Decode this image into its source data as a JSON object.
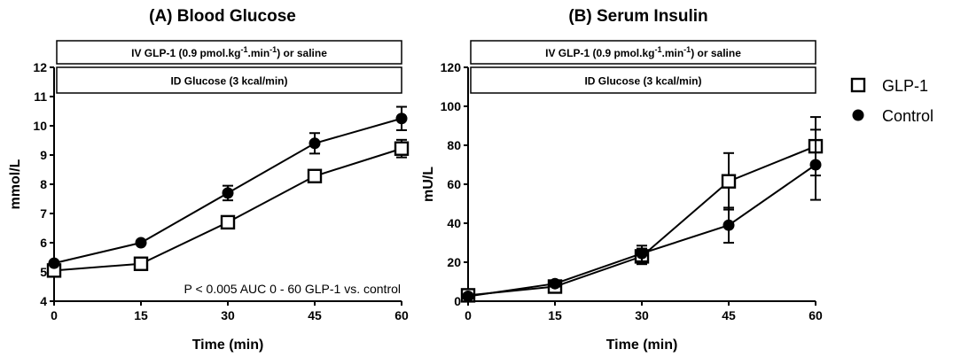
{
  "chart_data": [
    {
      "type": "line",
      "title": "(A) Blood Glucose",
      "xlabel": "Time (min)",
      "ylabel": "mmol/L",
      "x": [
        0,
        15,
        30,
        45,
        60
      ],
      "x_ticks": [
        "0",
        "15",
        "30",
        "45",
        "60"
      ],
      "xlim": [
        0,
        60
      ],
      "ylim": [
        4,
        12
      ],
      "y_ticks": [
        "4",
        "5",
        "6",
        "7",
        "8",
        "9",
        "10",
        "11",
        "12"
      ],
      "grid": false,
      "series": [
        {
          "name": "GLP-1",
          "marker": "open-square",
          "values": [
            5.05,
            5.28,
            6.7,
            8.28,
            9.22
          ],
          "error": [
            0.05,
            0.05,
            0.2,
            0.18,
            0.3
          ]
        },
        {
          "name": "Control",
          "marker": "filled-circle",
          "values": [
            5.3,
            6.0,
            7.7,
            9.4,
            10.25
          ],
          "error": [
            0.05,
            0.05,
            0.25,
            0.35,
            0.4
          ]
        }
      ],
      "banners": [
        {
          "pre": "IV GLP-1 (0.9 pmol.kg",
          "sup1": "-1",
          "mid": ".min",
          "sup2": "-1",
          "post": ") or saline"
        },
        {
          "pre": "ID Glucose (3 kcal/min)"
        }
      ],
      "annotation": "P < 0.005 AUC 0 - 60 GLP-1 vs. control"
    },
    {
      "type": "line",
      "title": "(B) Serum Insulin",
      "xlabel": "Time (min)",
      "ylabel": "mU/L",
      "x": [
        0,
        15,
        30,
        45,
        60
      ],
      "x_ticks": [
        "0",
        "15",
        "30",
        "45",
        "60"
      ],
      "xlim": [
        0,
        60
      ],
      "ylim": [
        0,
        120
      ],
      "y_ticks": [
        "0",
        "20",
        "40",
        "60",
        "80",
        "100",
        "120"
      ],
      "grid": false,
      "series": [
        {
          "name": "GLP-1",
          "marker": "open-square",
          "values": [
            3,
            7.5,
            23,
            61.5,
            79.5
          ],
          "error": [
            1,
            1.5,
            4,
            14.5,
            15
          ]
        },
        {
          "name": "Control",
          "marker": "filled-circle",
          "values": [
            2.5,
            9,
            24.5,
            39,
            70
          ],
          "error": [
            1,
            1.5,
            4,
            9,
            18
          ]
        }
      ],
      "banners": [
        {
          "pre": "IV GLP-1 (0.9 pmol.kg",
          "sup1": "-1",
          "mid": ".min",
          "sup2": "-1",
          "post": ") or saline"
        },
        {
          "pre": "ID Glucose (3 kcal/min)"
        }
      ]
    }
  ],
  "legend": {
    "placement": "right",
    "items": [
      {
        "label": "GLP-1",
        "marker": "open-square"
      },
      {
        "label": "Control",
        "marker": "filled-circle"
      }
    ]
  }
}
